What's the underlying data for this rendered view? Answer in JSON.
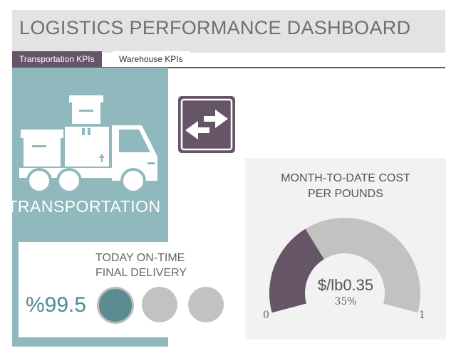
{
  "header": {
    "title": "LOGISTICS PERFORMANCE DASHBOARD"
  },
  "tabs": [
    {
      "label": "Transportation KPIs",
      "active": true
    },
    {
      "label": "Warehouse KPIs",
      "active": false
    }
  ],
  "transportation": {
    "label": "TRANSPORTATION",
    "icon": "delivery-truck-icon"
  },
  "delivery": {
    "title_line1": "TODAY ON-TIME",
    "title_line2": "FINAL DELIVERY",
    "value": "%99.5",
    "indicators_filled": 1,
    "indicators_total": 3
  },
  "swap": {
    "icon": "swap-arrows-icon"
  },
  "cost": {
    "title_line1": "MONTH-TO-DATE COST",
    "title_line2": "PER POUNDS",
    "value": "$/lb0.35",
    "percent": "35%",
    "fraction": 0.35,
    "min": "0",
    "max": "1"
  },
  "colors": {
    "accent": "#665566",
    "teal": "#8fb9bd",
    "teal_dark": "#5a8c92",
    "grey_light": "#c2c2c2",
    "header_bg": "#e3e3e3"
  }
}
